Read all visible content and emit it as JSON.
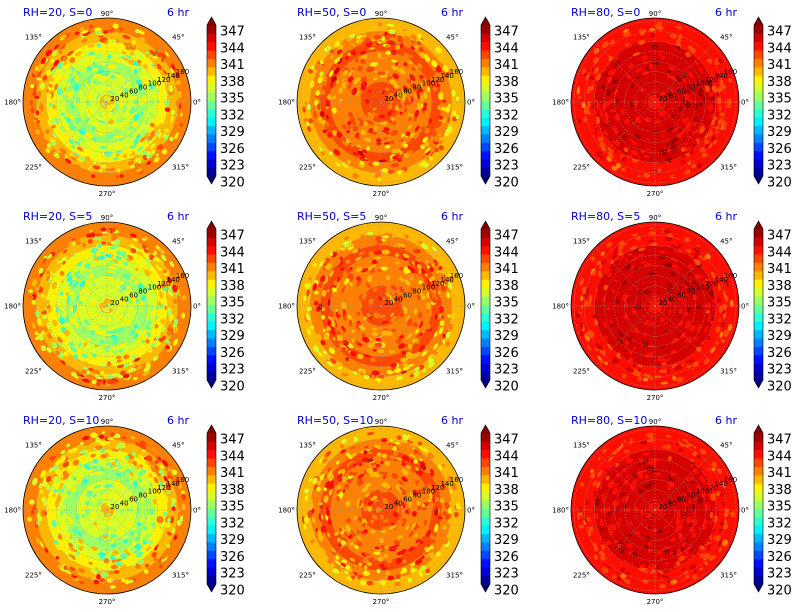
{
  "chart_data": {
    "type": "heatmap",
    "subtype": "polar-contourf-grid",
    "rows": 3,
    "cols": 3,
    "colormap": "jet",
    "colorbar_ticks": [
      "347",
      "344",
      "341",
      "338",
      "335",
      "332",
      "329",
      "326",
      "323",
      "320"
    ],
    "colorbar_range": [
      320,
      347
    ],
    "angle_ticks": [
      "90°",
      "45°",
      "0°",
      "315°",
      "270°",
      "225°",
      "180°",
      "135°"
    ],
    "radial_ticks": [
      "20",
      "40",
      "60",
      "80",
      "100",
      "120",
      "140",
      "160"
    ],
    "panels": [
      {
        "title": "RH=20, S=0",
        "time": "6 hr",
        "core_value": 338,
        "ring_values": [
          336,
          335.5,
          335,
          334.5,
          335,
          336.5,
          338.5,
          339.5
        ],
        "noise_amp": 4.5
      },
      {
        "title": "RH=50, S=0",
        "time": "6 hr",
        "core_value": 342,
        "ring_values": [
          341.5,
          341,
          340.5,
          340.5,
          340.5,
          341,
          340,
          338.5
        ],
        "noise_amp": 3.5
      },
      {
        "title": "RH=80, S=0",
        "time": "6 hr",
        "core_value": 343,
        "ring_values": [
          344.5,
          344.5,
          344.5,
          344.5,
          344.5,
          344,
          343,
          342.5
        ],
        "noise_amp": 2
      },
      {
        "title": "RH=20, S=5",
        "time": "6 hr",
        "core_value": 338,
        "ring_values": [
          336,
          335.5,
          335,
          334.5,
          335,
          336.5,
          338.5,
          339.5
        ],
        "noise_amp": 4.5
      },
      {
        "title": "RH=50, S=5",
        "time": "6 hr",
        "core_value": 342,
        "ring_values": [
          341.5,
          341,
          340.5,
          340.5,
          340.5,
          341,
          340,
          338.5
        ],
        "noise_amp": 3.5
      },
      {
        "title": "RH=80, S=5",
        "time": "6 hr",
        "core_value": 343,
        "ring_values": [
          344.5,
          344.5,
          344.5,
          344.5,
          344.5,
          344,
          343,
          342.5
        ],
        "noise_amp": 2
      },
      {
        "title": "RH=20, S=10",
        "time": "6 hr",
        "core_value": 338,
        "ring_values": [
          336,
          335.5,
          335,
          334.5,
          335,
          336.5,
          338.5,
          339.5
        ],
        "noise_amp": 4.5
      },
      {
        "title": "RH=50, S=10",
        "time": "6 hr",
        "core_value": 342,
        "ring_values": [
          341.5,
          341,
          340.5,
          340.5,
          340.5,
          341,
          340,
          338.5
        ],
        "noise_amp": 3.5
      },
      {
        "title": "RH=80, S=10",
        "time": "6 hr",
        "core_value": 343,
        "ring_values": [
          344.5,
          344.5,
          344.5,
          344.5,
          344.5,
          344,
          343,
          342.5
        ],
        "noise_amp": 2
      }
    ]
  }
}
